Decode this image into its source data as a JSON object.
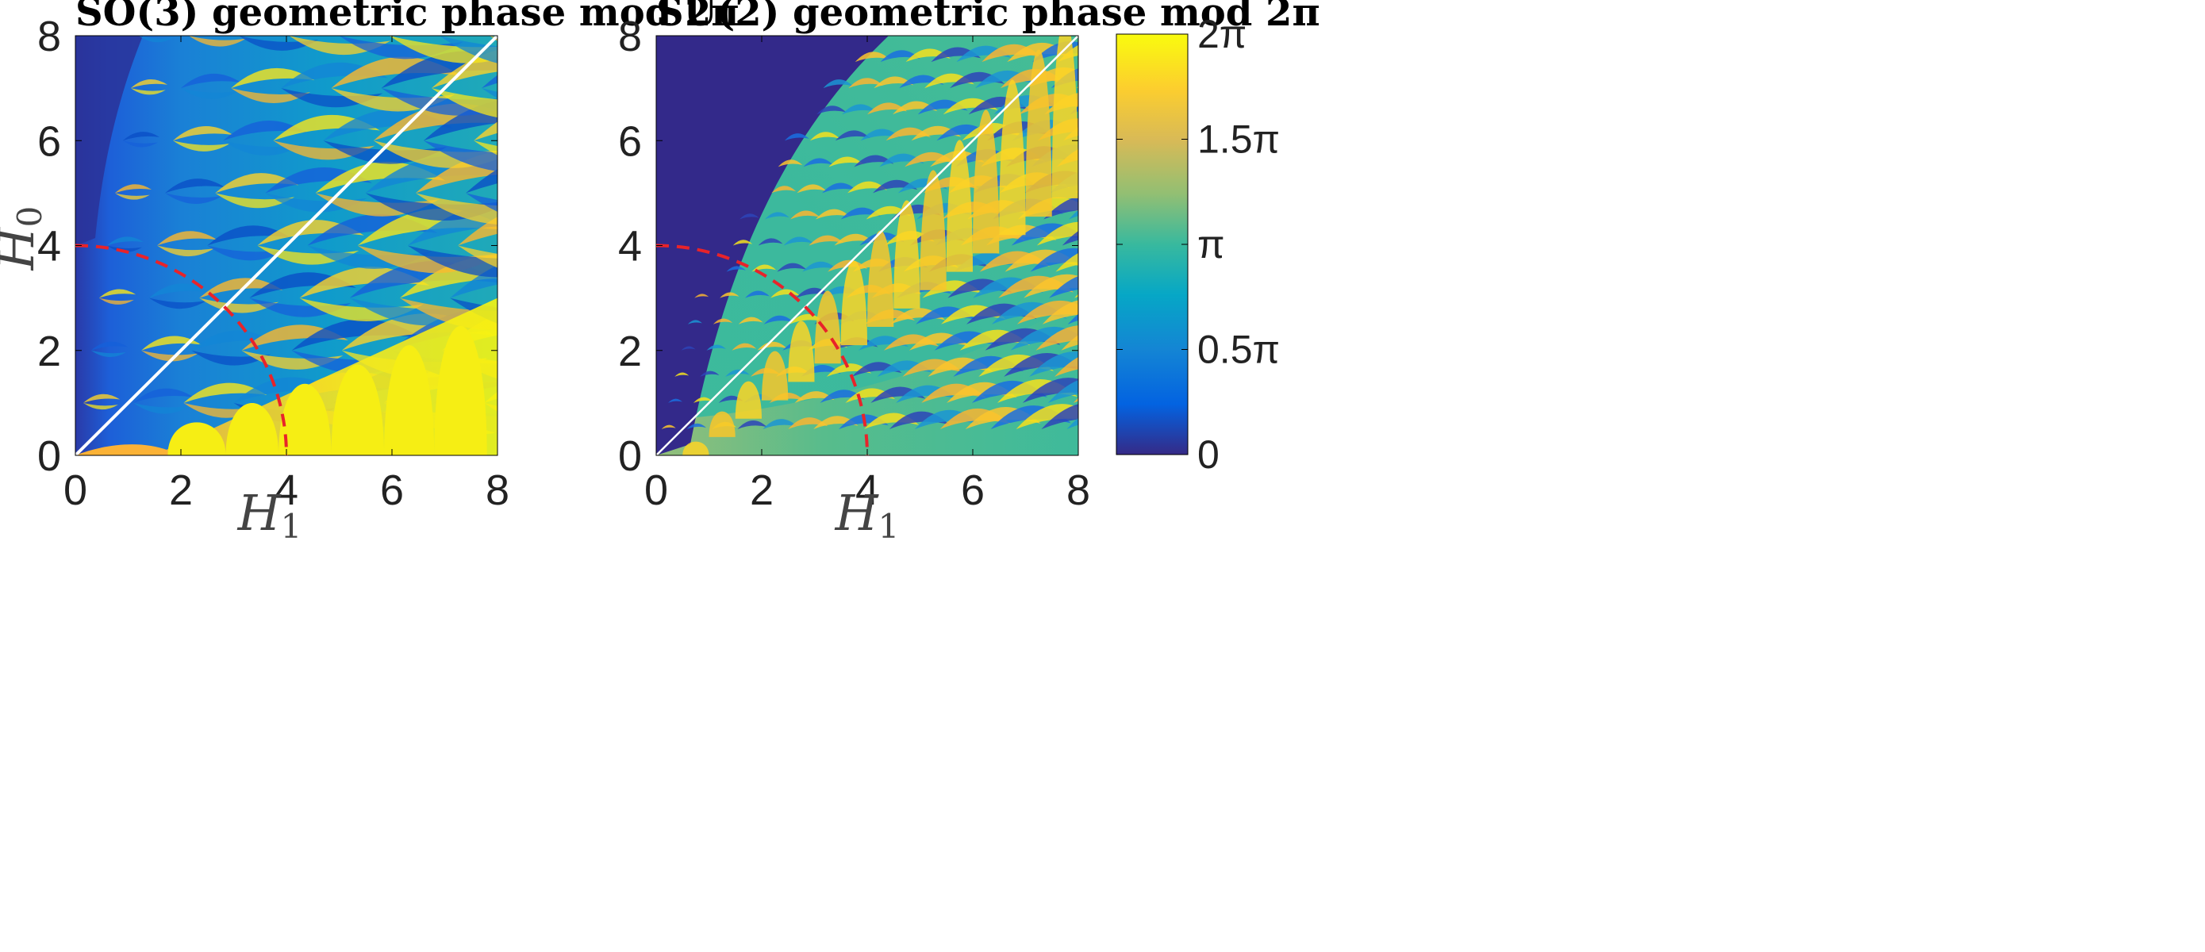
{
  "chart_data": [
    {
      "type": "heatmap",
      "title": "SO(3) geometric phase mod 2π",
      "xlabel": "H",
      "xlabel_sub": "1",
      "ylabel": "H",
      "ylabel_sub": "0",
      "xlim": [
        0,
        8
      ],
      "ylim": [
        0,
        8
      ],
      "xticks": [
        0,
        2,
        4,
        6,
        8
      ],
      "yticks": [
        0,
        2,
        4,
        6,
        8
      ],
      "xtick_labels": [
        "0",
        "2",
        "4",
        "6",
        "8"
      ],
      "ytick_labels": [
        "0",
        "2",
        "4",
        "6",
        "8"
      ],
      "overlays": {
        "diagonal_line": {
          "from": [
            0,
            0
          ],
          "to": [
            8,
            8
          ],
          "color": "#ffffff",
          "style": "solid"
        },
        "quarter_circle": {
          "center": [
            0,
            0
          ],
          "radius": 4,
          "color": "#e8232a",
          "style": "dashed"
        }
      },
      "approx_features": {
        "cusp_columns_x": [
          1.75,
          2.85,
          3.85,
          4.85,
          5.85,
          6.8,
          7.8
        ],
        "cusp_rows_y": [
          1,
          2,
          3,
          4,
          5,
          6,
          7,
          8
        ],
        "region_below_dome_value": "2π",
        "region_upper_left_value": "0"
      }
    },
    {
      "type": "heatmap",
      "title": "SU(2) geometric phase mod 2π",
      "xlabel": "H",
      "xlabel_sub": "1",
      "ylabel": "",
      "xlim": [
        0,
        8
      ],
      "ylim": [
        0,
        8
      ],
      "xticks": [
        0,
        2,
        4,
        6,
        8
      ],
      "yticks": [
        0,
        2,
        4,
        6,
        8
      ],
      "xtick_labels": [
        "0",
        "2",
        "4",
        "6",
        "8"
      ],
      "ytick_labels": [
        "0",
        "2",
        "4",
        "6",
        "8"
      ],
      "overlays": {
        "diagonal_line": {
          "from": [
            0,
            0
          ],
          "to": [
            8,
            8
          ],
          "color": "#ffffff",
          "style": "solid"
        },
        "quarter_circle": {
          "center": [
            0,
            0
          ],
          "radius": 4,
          "color": "#e8232a",
          "style": "dashed"
        }
      },
      "approx_features": {
        "cusp_columns_x": [
          0.5,
          1.0,
          1.5,
          2.0,
          2.5,
          3.0,
          3.5,
          4.0,
          4.5,
          5.0,
          5.5,
          6.0,
          6.5,
          7.0,
          7.5,
          8.0
        ],
        "cusp_rows_y": [
          0.5,
          1,
          1.5,
          2,
          2.5,
          3,
          3.5,
          4,
          4.5,
          5,
          5.5,
          6,
          6.5,
          7,
          7.5,
          8
        ],
        "region_lower_right_value": "π",
        "region_upper_left_value": "0"
      }
    }
  ],
  "colorbar": {
    "label_values": [
      0,
      0.5,
      1,
      1.5,
      2
    ],
    "tick_labels": [
      "0",
      "0.5π",
      "π",
      "1.5π",
      "2π"
    ],
    "colormap": "parula",
    "stops": [
      "#352a87",
      "#0363e1",
      "#1485d4",
      "#06a7c6",
      "#38b99e",
      "#92bf73",
      "#d9ba56",
      "#fcce2e",
      "#f9fb0e"
    ]
  },
  "colors": {
    "dark": "#352a87",
    "blue": "#0f5cdd",
    "cyan": "#139bd6",
    "teal": "#3cb9a0",
    "yellow": "#f5e61a",
    "gold": "#fcbc2c",
    "red_dashed": "#e8232a"
  }
}
